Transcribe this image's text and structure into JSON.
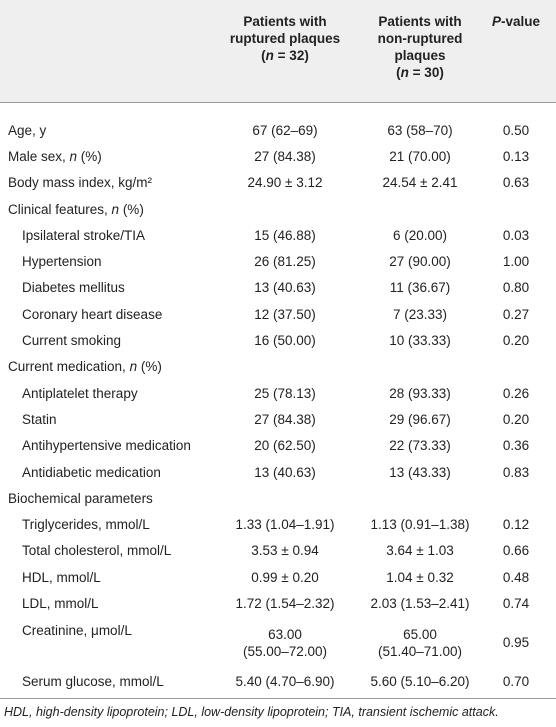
{
  "table": {
    "header": [
      [
        [
          "Patients with"
        ],
        [
          "ruptured plaques"
        ],
        [
          "(",
          "n",
          " = 32)"
        ]
      ],
      [
        [
          "Patients with"
        ],
        [
          "non-ruptured"
        ],
        [
          "plaques"
        ],
        [
          "(",
          "n",
          " = 30)"
        ]
      ],
      [
        [
          "",
          "P",
          "-value"
        ]
      ]
    ],
    "groups": [
      {
        "rows": [
          {
            "label": [
              "Age, y"
            ],
            "values": [
              "67 (62–69)",
              "63 (58–70)",
              "0.50"
            ]
          },
          {
            "label": [
              "Male sex, ",
              "n",
              " (%)"
            ],
            "values": [
              "27 (84.38)",
              "21 (70.00)",
              "0.13"
            ]
          },
          {
            "label": [
              "Body mass index, kg/m²"
            ],
            "values": [
              "24.90 ± 3.12",
              "24.54 ± 2.41",
              "0.63"
            ]
          }
        ]
      },
      {
        "title": [
          "Clinical features, ",
          "n",
          " (%)"
        ],
        "rows": [
          {
            "label": [
              "Ipsilateral stroke/TIA"
            ],
            "values": [
              "15 (46.88)",
              "6 (20.00)",
              "0.03"
            ]
          },
          {
            "label": [
              "Hypertension"
            ],
            "values": [
              "26 (81.25)",
              "27 (90.00)",
              "1.00"
            ]
          },
          {
            "label": [
              "Diabetes mellitus"
            ],
            "values": [
              "13 (40.63)",
              "11 (36.67)",
              "0.80"
            ]
          },
          {
            "label": [
              "Coronary heart disease"
            ],
            "values": [
              "12 (37.50)",
              "7 (23.33)",
              "0.27"
            ]
          },
          {
            "label": [
              "Current smoking"
            ],
            "values": [
              "16 (50.00)",
              "10 (33.33)",
              "0.20"
            ]
          }
        ]
      },
      {
        "title": [
          "Current medication, ",
          "n",
          " (%)"
        ],
        "rows": [
          {
            "label": [
              "Antiplatelet therapy"
            ],
            "values": [
              "25 (78.13)",
              "28 (93.33)",
              "0.26"
            ]
          },
          {
            "label": [
              "Statin"
            ],
            "values": [
              "27 (84.38)",
              "29 (96.67)",
              "0.20"
            ]
          },
          {
            "label": [
              "Antihypertensive medication"
            ],
            "values": [
              "20 (62.50)",
              "22 (73.33)",
              "0.36"
            ]
          },
          {
            "label": [
              "Antidiabetic medication"
            ],
            "values": [
              "13 (40.63)",
              "13 (43.33)",
              "0.83"
            ]
          }
        ]
      },
      {
        "title": [
          "Biochemical parameters"
        ],
        "rows": [
          {
            "label": [
              "Triglycerides, mmol/L"
            ],
            "values": [
              "1.33 (1.04–1.91)",
              "1.13 (0.91–1.38)",
              "0.12"
            ]
          },
          {
            "label": [
              "Total cholesterol, mmol/L"
            ],
            "values": [
              "3.53 ± 0.94",
              "3.64 ± 1.03",
              "0.66"
            ]
          },
          {
            "label": [
              "HDL, mmol/L"
            ],
            "values": [
              "0.99 ± 0.20",
              "1.04 ± 0.32",
              "0.48"
            ]
          },
          {
            "label": [
              "LDL, mmol/L"
            ],
            "values": [
              "1.72 (1.54–2.32)",
              "2.03 (1.53–2.41)",
              "0.74"
            ]
          },
          {
            "label": [
              "Creatinine, μmol/L"
            ],
            "values": [
              [
                "63.00",
                "(55.00–72.00)"
              ],
              [
                "65.00",
                "(51.40–71.00)"
              ],
              "0.95"
            ]
          },
          {
            "label": [
              "Serum glucose, mmol/L"
            ],
            "values": [
              "5.40 (4.70–6.90)",
              "5.60 (5.10–6.20)",
              "0.70"
            ]
          }
        ]
      }
    ],
    "footnote": "HDL, high-density lipoprotein; LDL, low-density lipoprotein; TIA, transient ischemic attack."
  }
}
